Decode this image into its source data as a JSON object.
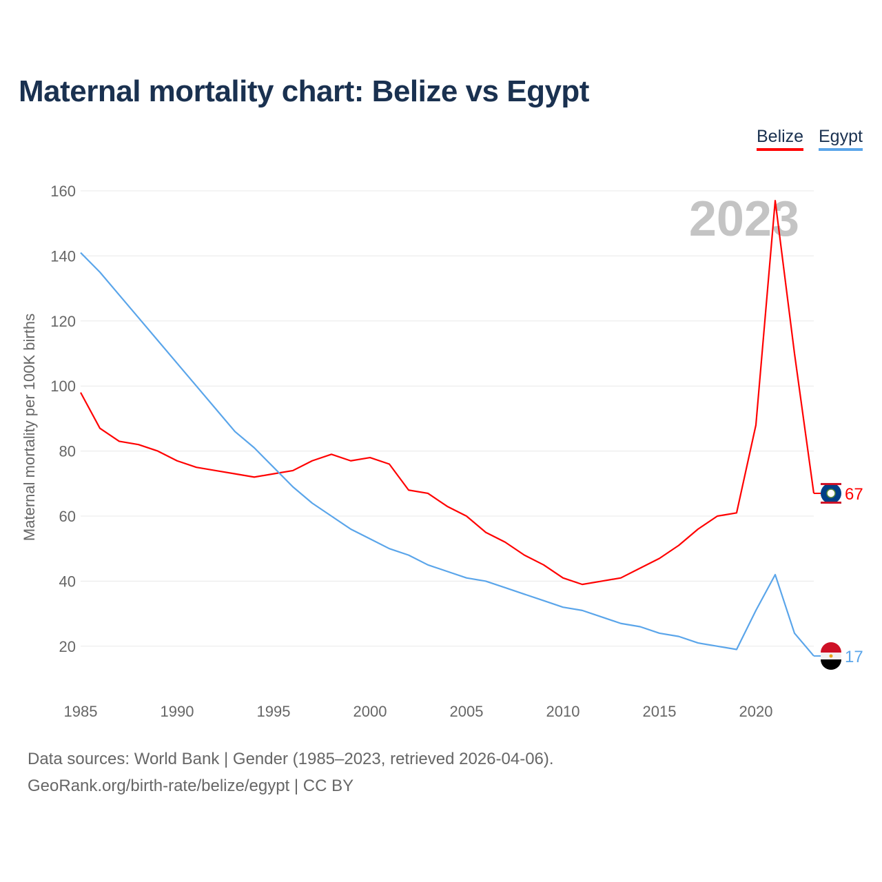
{
  "chart_data": {
    "type": "line",
    "title": "Maternal mortality chart: Belize vs Egypt",
    "ylabel": "Maternal mortality per 100K births",
    "xlabel": "",
    "ylim": [
      0,
      160
    ],
    "xlim": [
      1985,
      2023
    ],
    "yticks": [
      20,
      40,
      60,
      80,
      100,
      120,
      140,
      160
    ],
    "xticks": [
      1985,
      1990,
      1995,
      2000,
      2005,
      2010,
      2015,
      2020
    ],
    "grid": true,
    "legend_position": "top-right",
    "year_watermark": "2023",
    "x": [
      1985,
      1986,
      1987,
      1988,
      1989,
      1990,
      1991,
      1992,
      1993,
      1994,
      1995,
      1996,
      1997,
      1998,
      1999,
      2000,
      2001,
      2002,
      2003,
      2004,
      2005,
      2006,
      2007,
      2008,
      2009,
      2010,
      2011,
      2012,
      2013,
      2014,
      2015,
      2016,
      2017,
      2018,
      2019,
      2020,
      2021,
      2022,
      2023
    ],
    "series": [
      {
        "name": "Belize",
        "color": "#ff0000",
        "end_label": "67",
        "values": [
          98,
          87,
          83,
          82,
          80,
          77,
          75,
          74,
          73,
          72,
          73,
          74,
          77,
          79,
          77,
          78,
          76,
          68,
          67,
          63,
          60,
          55,
          52,
          48,
          45,
          41,
          39,
          40,
          41,
          44,
          47,
          51,
          56,
          60,
          61,
          88,
          157,
          110,
          67
        ]
      },
      {
        "name": "Egypt",
        "color": "#5aa5ea",
        "end_label": "17",
        "values": [
          141,
          135,
          128,
          121,
          114,
          107,
          100,
          93,
          86,
          81,
          75,
          69,
          64,
          60,
          56,
          53,
          50,
          48,
          45,
          43,
          41,
          40,
          38,
          36,
          34,
          32,
          31,
          29,
          27,
          26,
          24,
          23,
          21,
          20,
          19,
          31,
          42,
          24,
          17
        ]
      }
    ]
  },
  "source": {
    "line1": "Data sources: World Bank | Gender (1985–2023, retrieved 2026-04-06).",
    "line2": "GeoRank.org/birth-rate/belize/egypt | CC BY"
  }
}
